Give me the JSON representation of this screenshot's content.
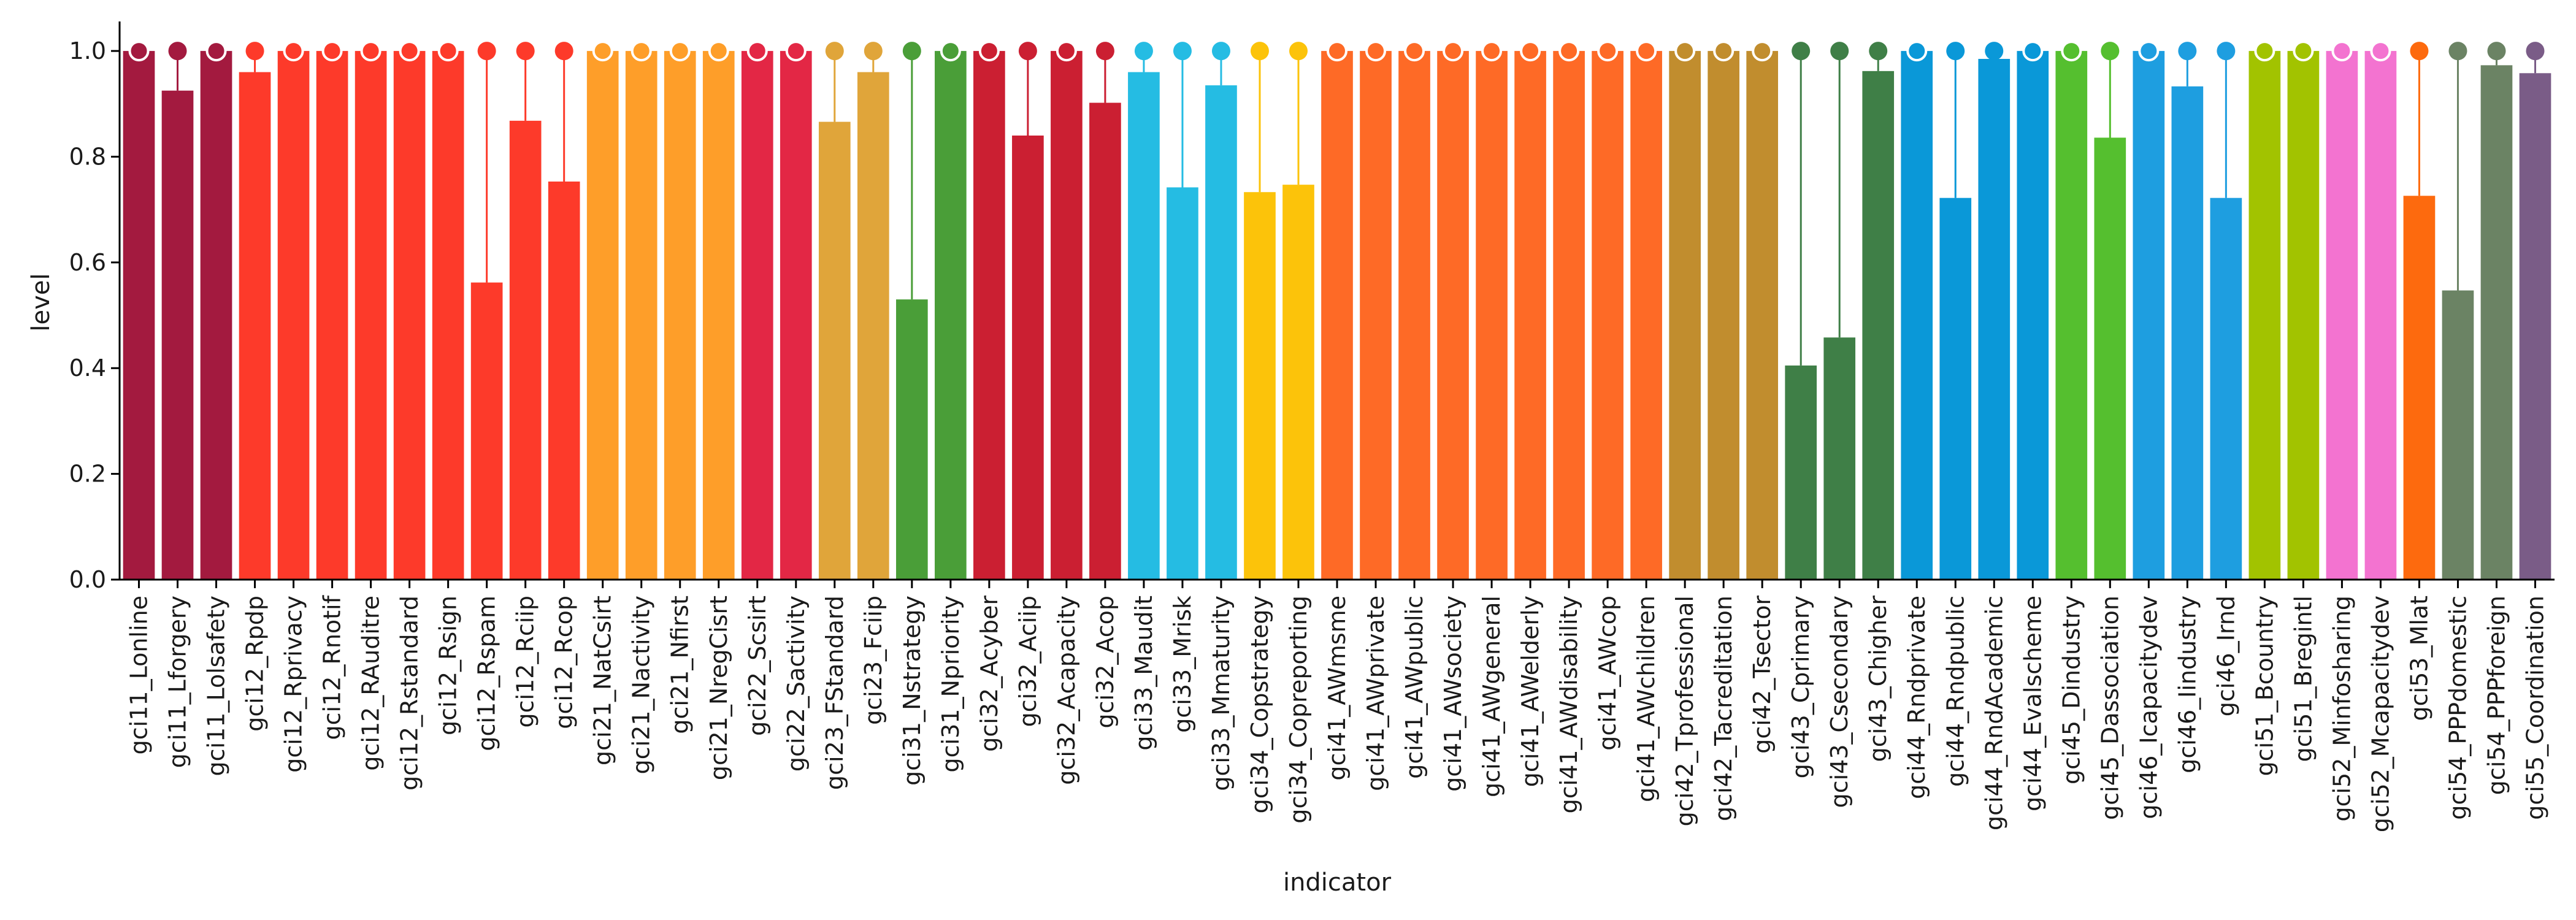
{
  "chart_data": {
    "type": "bar",
    "xlabel": "indicator",
    "ylabel": "level",
    "ylim": [
      0,
      1.05
    ],
    "yticks": [
      "0.0",
      "0.2",
      "0.4",
      "0.6",
      "0.8",
      "1.0"
    ],
    "grid": false,
    "legend": "none",
    "target_marker": 1.0,
    "categories": [
      "gci11_Lonline",
      "gci11_Lforgery",
      "gci11_Lolsafety",
      "gci12_Rpdp",
      "gci12_Rprivacy",
      "gci12_Rnotif",
      "gci12_RAuditre",
      "gci12_Rstandard",
      "gci12_Rsign",
      "gci12_Rspam",
      "gci12_Rciip",
      "gci12_Rcop",
      "gci21_NatCsirt",
      "gci21_Nactivity",
      "gci21_Nfirst",
      "gci21_NregCisrt",
      "gci22_Scsirt",
      "gci22_Sactivity",
      "gci23_FStandard",
      "gci23_Fciip",
      "gci31_Nstrategy",
      "gci31_Npriority",
      "gci32_Acyber",
      "gci32_Aciip",
      "gci32_Acapacity",
      "gci32_Acop",
      "gci33_Maudit",
      "gci33_Mrisk",
      "gci33_Mmaturity",
      "gci34_Copstrategy",
      "gci34_Copreporting",
      "gci41_AWmsme",
      "gci41_AWprivate",
      "gci41_AWpublic",
      "gci41_AWsociety",
      "gci41_AWgeneral",
      "gci41_AWelderly",
      "gci41_AWdisability",
      "gci41_AWcop",
      "gci41_AWchildren",
      "gci42_Tprofessional",
      "gci42_Tacreditation",
      "gci42_Tsector",
      "gci43_Cprimary",
      "gci43_Csecondary",
      "gci43_Chigher",
      "gci44_Rndprivate",
      "gci44_Rndpublic",
      "gci44_RndAcademic",
      "gci44_Evalscheme",
      "gci45_Dindustry",
      "gci45_Dassociation",
      "gci46_Icapacitydev",
      "gci46_Iindustry",
      "gci46_Irnd",
      "gci51_Bcountry",
      "gci51_Bregintl",
      "gci52_Minfosharing",
      "gci52_Mcapacitydev",
      "gci53_Mlat",
      "gci54_PPPdomestic",
      "gci54_PPPforeign",
      "gci55_Coordination"
    ],
    "values": [
      1.0,
      0.925,
      1.0,
      0.96,
      1.0,
      1.0,
      1.0,
      1.0,
      1.0,
      0.562,
      0.868,
      0.753,
      1.0,
      1.0,
      1.0,
      1.0,
      1.0,
      1.0,
      0.866,
      0.96,
      0.53,
      1.0,
      1.0,
      0.84,
      1.0,
      0.902,
      0.96,
      0.742,
      0.935,
      0.733,
      0.747,
      1.0,
      1.0,
      1.0,
      1.0,
      1.0,
      1.0,
      1.0,
      1.0,
      1.0,
      1.0,
      1.0,
      1.0,
      0.405,
      0.458,
      0.962,
      1.0,
      0.722,
      0.985,
      1.0,
      1.0,
      0.836,
      1.0,
      0.933,
      0.722,
      1.0,
      1.0,
      1.0,
      1.0,
      0.726,
      0.547,
      0.973,
      0.958
    ],
    "colors": [
      "#A31A3F",
      "#A31A3F",
      "#A31A3F",
      "#FD3A2A",
      "#FD3A2A",
      "#FD3A2A",
      "#FD3A2A",
      "#FD3A2A",
      "#FD3A2A",
      "#FD3A2A",
      "#FD3A2A",
      "#FD3A2A",
      "#FE9E29",
      "#FE9E29",
      "#FE9E29",
      "#FE9E29",
      "#E32745",
      "#E32745",
      "#E0A53A",
      "#E0A53A",
      "#4A9E38",
      "#4A9E38",
      "#CB1F32",
      "#CB1F32",
      "#CB1F32",
      "#CB1F32",
      "#25BCE3",
      "#25BCE3",
      "#25BCE3",
      "#FCC30A",
      "#FCC30A",
      "#FE6A26",
      "#FE6A26",
      "#FE6A26",
      "#FE6A26",
      "#FE6A26",
      "#FE6A26",
      "#FE6A26",
      "#FE6A26",
      "#FE6A26",
      "#C18D2E",
      "#C18D2E",
      "#C18D2E",
      "#3F7F47",
      "#3F7F47",
      "#3F7F47",
      "#0A98D8",
      "#0A98D8",
      "#0A98D8",
      "#0A98D8",
      "#55BF2F",
      "#55BF2F",
      "#1E9EE0",
      "#1E9EE0",
      "#1E9EE0",
      "#A2C300",
      "#A2C300",
      "#F373D0",
      "#F373D0",
      "#FD6A0E",
      "#6B8364",
      "#6B8364",
      "#7A5C87"
    ]
  }
}
